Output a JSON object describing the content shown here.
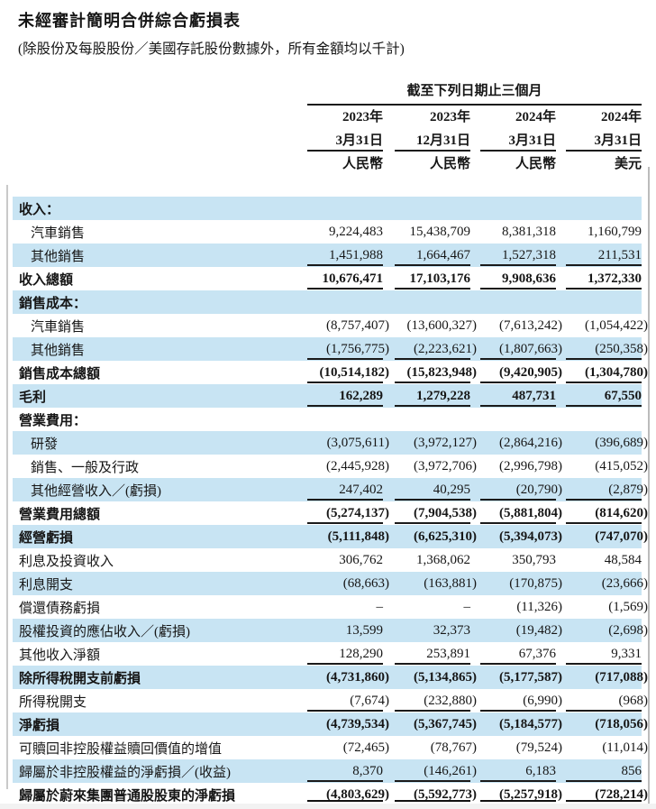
{
  "title": "未經審計簡明合併綜合虧損表",
  "subtitle": "(除股份及每股股份／美國存託股份數據外，所有金額均以千計)",
  "colors": {
    "row_shade": "#c8e4f3",
    "text": "#161616"
  },
  "table": {
    "period_header": "截至下列日期止三個月",
    "columns": [
      {
        "year": "2023年",
        "date": "3月31日",
        "currency": "人民幣"
      },
      {
        "year": "2023年",
        "date": "12月31日",
        "currency": "人民幣"
      },
      {
        "year": "2024年",
        "date": "3月31日",
        "currency": "人民幣"
      },
      {
        "year": "2024年",
        "date": "3月31日",
        "currency": "美元"
      }
    ],
    "rows": [
      {
        "label": "收入：",
        "bold": true,
        "shaded": true,
        "indent": false,
        "line": "none",
        "values": [
          "",
          "",
          "",
          ""
        ]
      },
      {
        "label": "汽車銷售",
        "bold": false,
        "shaded": false,
        "indent": true,
        "line": "none",
        "values": [
          "9,224,483",
          "15,438,709",
          "8,381,318",
          "1,160,799"
        ]
      },
      {
        "label": "其他銷售",
        "bold": false,
        "shaded": true,
        "indent": true,
        "line": "single",
        "values": [
          "1,451,988",
          "1,664,467",
          "1,527,318",
          "211,531"
        ]
      },
      {
        "label": "收入總額",
        "bold": true,
        "shaded": false,
        "indent": false,
        "line": "single",
        "values": [
          "10,676,471",
          "17,103,176",
          "9,908,636",
          "1,372,330"
        ]
      },
      {
        "label": "銷售成本：",
        "bold": true,
        "shaded": true,
        "indent": false,
        "line": "none",
        "values": [
          "",
          "",
          "",
          ""
        ]
      },
      {
        "label": "汽車銷售",
        "bold": false,
        "shaded": false,
        "indent": true,
        "line": "none",
        "values": [
          "(8,757,407)",
          "(13,600,327)",
          "(7,613,242)",
          "(1,054,422)"
        ]
      },
      {
        "label": "其他銷售",
        "bold": false,
        "shaded": true,
        "indent": true,
        "line": "single",
        "values": [
          "(1,756,775)",
          "(2,223,621)",
          "(1,807,663)",
          "(250,358)"
        ]
      },
      {
        "label": "銷售成本總額",
        "bold": true,
        "shaded": false,
        "indent": false,
        "line": "single",
        "values": [
          "(10,514,182)",
          "(15,823,948)",
          "(9,420,905)",
          "(1,304,780)"
        ]
      },
      {
        "label": "毛利",
        "bold": true,
        "shaded": true,
        "indent": false,
        "line": "single",
        "values": [
          "162,289",
          "1,279,228",
          "487,731",
          "67,550"
        ]
      },
      {
        "label": "營業費用：",
        "bold": true,
        "shaded": false,
        "indent": false,
        "line": "none",
        "values": [
          "",
          "",
          "",
          ""
        ]
      },
      {
        "label": "研發",
        "bold": false,
        "shaded": true,
        "indent": true,
        "line": "none",
        "values": [
          "(3,075,611)",
          "(3,972,127)",
          "(2,864,216)",
          "(396,689)"
        ]
      },
      {
        "label": "銷售、一般及行政",
        "bold": false,
        "shaded": false,
        "indent": true,
        "line": "none",
        "values": [
          "(2,445,928)",
          "(3,972,706)",
          "(2,996,798)",
          "(415,052)"
        ]
      },
      {
        "label": "其他經營收入／(虧損)",
        "bold": false,
        "shaded": true,
        "indent": true,
        "line": "single",
        "values": [
          "247,402",
          "40,295",
          "(20,790)",
          "(2,879)"
        ]
      },
      {
        "label": "營業費用總額",
        "bold": true,
        "shaded": false,
        "indent": false,
        "line": "single",
        "values": [
          "(5,274,137)",
          "(7,904,538)",
          "(5,881,804)",
          "(814,620)"
        ]
      },
      {
        "label": "經營虧損",
        "bold": true,
        "shaded": true,
        "indent": false,
        "line": "none",
        "values": [
          "(5,111,848)",
          "(6,625,310)",
          "(5,394,073)",
          "(747,070)"
        ]
      },
      {
        "label": "利息及投資收入",
        "bold": false,
        "shaded": false,
        "indent": false,
        "line": "none",
        "values": [
          "306,762",
          "1,368,062",
          "350,793",
          "48,584"
        ]
      },
      {
        "label": "利息開支",
        "bold": false,
        "shaded": true,
        "indent": false,
        "line": "none",
        "values": [
          "(68,663)",
          "(163,881)",
          "(170,875)",
          "(23,666)"
        ]
      },
      {
        "label": "償還債務虧損",
        "bold": false,
        "shaded": false,
        "indent": false,
        "line": "none",
        "values": [
          "–",
          "–",
          "(11,326)",
          "(1,569)"
        ]
      },
      {
        "label": "股權投資的應佔收入／(虧損)",
        "bold": false,
        "shaded": true,
        "indent": false,
        "line": "none",
        "values": [
          "13,599",
          "32,373",
          "(19,482)",
          "(2,698)"
        ]
      },
      {
        "label": "其他收入淨額",
        "bold": false,
        "shaded": false,
        "indent": false,
        "line": "single",
        "values": [
          "128,290",
          "253,891",
          "67,376",
          "9,331"
        ]
      },
      {
        "label": "除所得稅開支前虧損",
        "bold": true,
        "shaded": true,
        "indent": false,
        "line": "none",
        "values": [
          "(4,731,860)",
          "(5,134,865)",
          "(5,177,587)",
          "(717,088)"
        ]
      },
      {
        "label": "所得稅開支",
        "bold": false,
        "shaded": false,
        "indent": false,
        "line": "single",
        "values": [
          "(7,674)",
          "(232,880)",
          "(6,990)",
          "(968)"
        ]
      },
      {
        "label": "淨虧損",
        "bold": true,
        "shaded": true,
        "indent": false,
        "line": "none",
        "values": [
          "(4,739,534)",
          "(5,367,745)",
          "(5,184,577)",
          "(718,056)"
        ]
      },
      {
        "label": "可贖回非控股權益贖回價值的增值",
        "bold": false,
        "shaded": false,
        "indent": false,
        "line": "none",
        "values": [
          "(72,465)",
          "(78,767)",
          "(79,524)",
          "(11,014)"
        ]
      },
      {
        "label": "歸屬於非控股權益的淨虧損／(收益)",
        "bold": false,
        "shaded": true,
        "indent": false,
        "line": "single",
        "values": [
          "8,370",
          "(146,261)",
          "6,183",
          "856"
        ]
      },
      {
        "label": "歸屬於蔚來集團普通股股東的淨虧損",
        "bold": true,
        "shaded": false,
        "indent": false,
        "line": "double",
        "values": [
          "(4,803,629)",
          "(5,592,773)",
          "(5,257,918)",
          "(728,214)"
        ]
      }
    ]
  }
}
